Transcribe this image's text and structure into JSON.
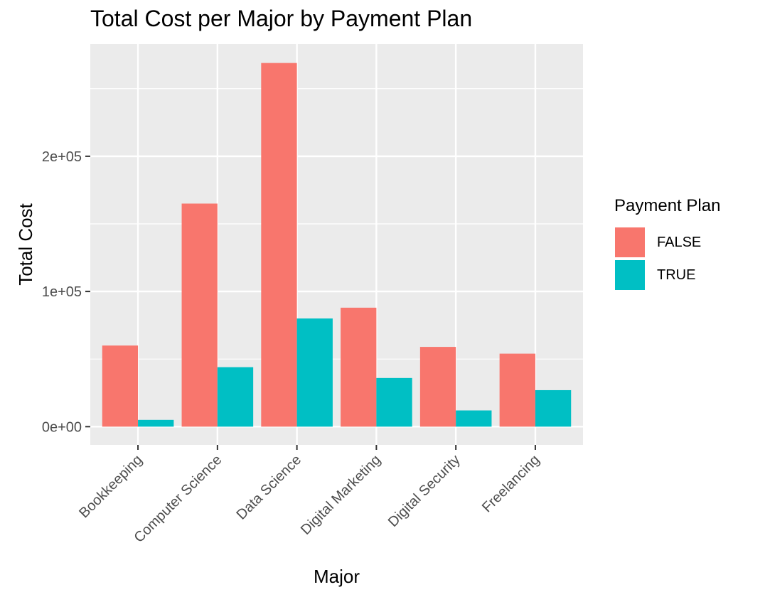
{
  "chart_data": {
    "type": "bar",
    "title": "Total Cost per Major by Payment Plan",
    "xlabel": "Major",
    "ylabel": "Total Cost",
    "categories": [
      "Bookkeeping",
      "Computer Science",
      "Data Science",
      "Digital Marketing",
      "Digital Security",
      "Freelancing"
    ],
    "series": [
      {
        "name": "FALSE",
        "color": "#F8766D",
        "values": [
          60000,
          165000,
          269000,
          88000,
          59000,
          54000
        ]
      },
      {
        "name": "TRUE",
        "color": "#00BFC4",
        "values": [
          5000,
          44000,
          80000,
          36000,
          12000,
          27000
        ]
      }
    ],
    "ylim": [
      -13500,
      283000
    ],
    "yticks": [
      0,
      100000,
      200000
    ],
    "ytick_labels": [
      "0e+00",
      "1e+05",
      "2e+05"
    ],
    "legend_title": "Payment Plan",
    "legend_position": "right",
    "grid": true,
    "panel_background": "#EBEBEB"
  }
}
